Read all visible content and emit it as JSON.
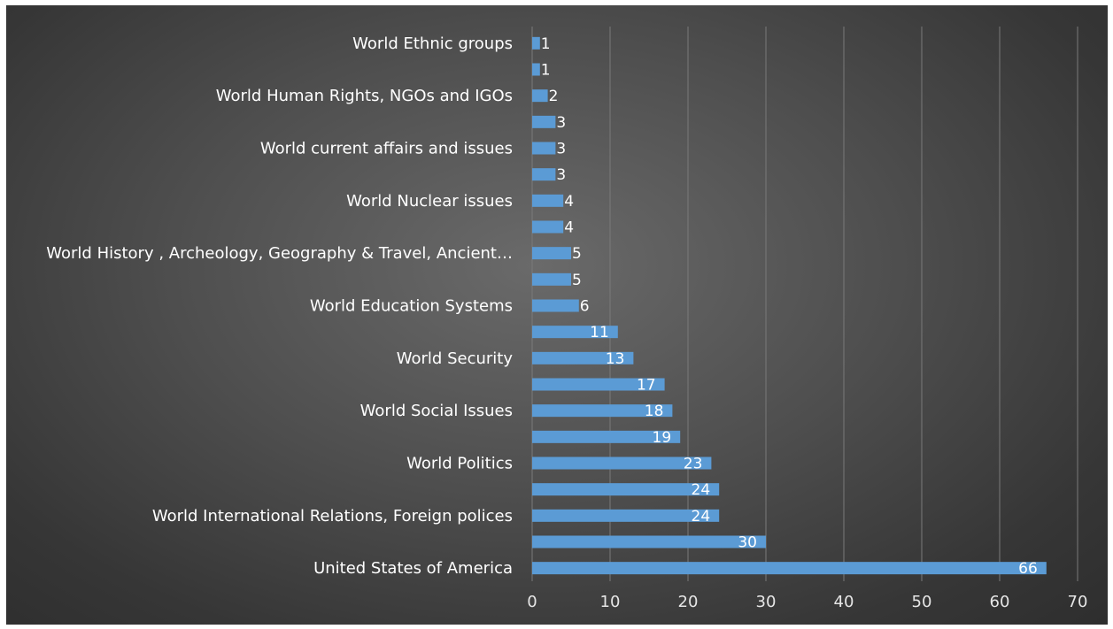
{
  "chart_data": {
    "type": "bar",
    "orientation": "horizontal",
    "title": "",
    "xlabel": "",
    "ylabel": "",
    "xlim": [
      0,
      70
    ],
    "x_ticks": [
      0,
      10,
      20,
      30,
      40,
      50,
      60,
      70
    ],
    "grid": "vertical",
    "legend": "none",
    "bar_color": "#5b9bd5",
    "categories": [
      "United States of America",
      "",
      "World International Relations, Foreign polices",
      "",
      "World Politics",
      "",
      "World Social Issues",
      "",
      "World Security",
      "",
      "World Education Systems",
      "",
      "World History , Archeology, Geography & Travel, Ancient…",
      "",
      "World Nuclear issues",
      "",
      "World current affairs and issues",
      "",
      "World Human Rights, NGOs and IGOs",
      "",
      "World Ethnic groups"
    ],
    "values": [
      66,
      30,
      24,
      24,
      23,
      19,
      18,
      17,
      13,
      11,
      6,
      5,
      5,
      4,
      4,
      3,
      3,
      3,
      2,
      1,
      1
    ],
    "data_labels": [
      "66",
      "30",
      "24",
      "24",
      "23",
      "19",
      "18",
      "17",
      "13",
      "11",
      "6",
      "5",
      "5",
      "4",
      "4",
      "3",
      "3",
      "3",
      "2",
      "1",
      "1"
    ]
  }
}
